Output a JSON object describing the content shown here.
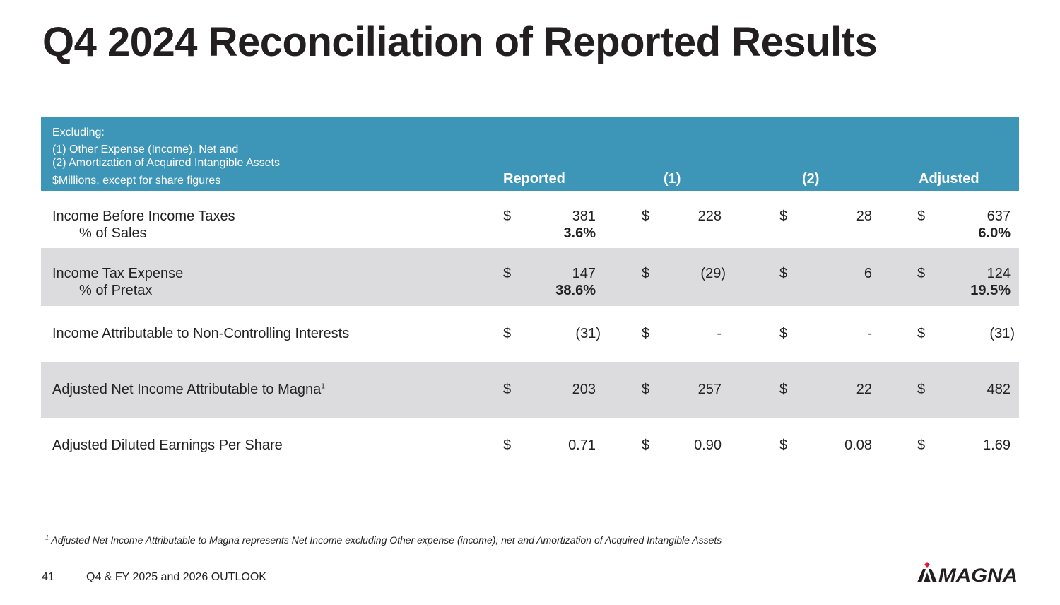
{
  "title": "Q4 2024 Reconciliation of Reported Results",
  "header": {
    "excluding": "Excluding:",
    "line1": "(1) Other Expense (Income), Net and",
    "line2": "(2) Amortization of Acquired Intangible Assets",
    "units": "$Millions, except for share figures",
    "columns": [
      "Reported",
      "(1)",
      "(2)",
      "Adjusted"
    ]
  },
  "rows": [
    {
      "label": "Income Before Income Taxes",
      "sublabel": "% of Sales",
      "currency": "$",
      "values": [
        "381",
        "228",
        "28",
        "637"
      ],
      "pcts": [
        "3.6%",
        "",
        "",
        "6.0%"
      ]
    },
    {
      "label": "Income Tax Expense",
      "sublabel": "% of Pretax",
      "currency": "$",
      "values": [
        "147",
        "(29)",
        "6",
        "124"
      ],
      "pcts": [
        "38.6%",
        "",
        "",
        "19.5%"
      ]
    },
    {
      "label": "Income Attributable to Non-Controlling Interests",
      "currency": "$",
      "values": [
        "(31)",
        "-",
        "-",
        "(31)"
      ]
    },
    {
      "label": "Adjusted Net Income Attributable to Magna",
      "label_sup": "1",
      "currency": "$",
      "values": [
        "203",
        "257",
        "22",
        "482"
      ]
    },
    {
      "label": "Adjusted Diluted Earnings Per Share",
      "currency": "$",
      "values": [
        "0.71",
        "0.90",
        "0.08",
        "1.69"
      ]
    }
  ],
  "footnote": {
    "marker": "1",
    "text": "Adjusted Net Income Attributable to Magna represents Net Income excluding Other expense (income), net and Amortization of Acquired Intangible Assets"
  },
  "footer": {
    "page_number": "41",
    "deck_title": "Q4 & FY 2025 and 2026 OUTLOOK",
    "logo_text": "MAGNA"
  },
  "colors": {
    "header_bg": "#3d96b7",
    "shaded_row": "#dcdcde",
    "logo_red": "#e31837",
    "logo_dark": "#231f20"
  }
}
